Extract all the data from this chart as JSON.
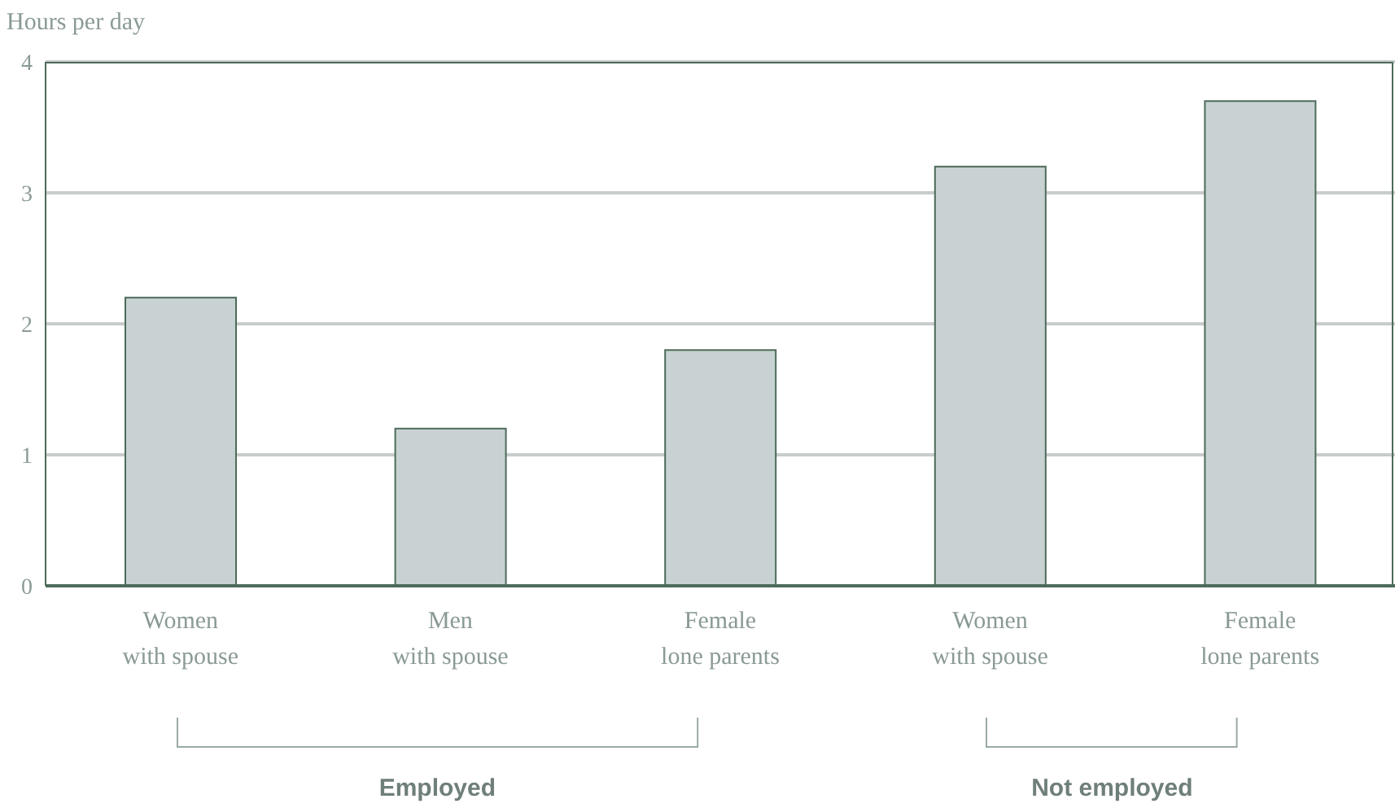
{
  "chart_data": {
    "type": "bar",
    "ylabel": "Hours per day",
    "categories": [
      "Women\nwith spouse",
      "Men\nwith spouse",
      "Female\nlone parents",
      "Women\nwith spouse",
      "Female\nlone parents"
    ],
    "values": [
      2.2,
      1.2,
      1.8,
      3.2,
      3.7
    ],
    "color": "#c8d2d2",
    "ylim": [
      0,
      4
    ],
    "yticks": [
      0,
      1,
      2,
      3,
      4
    ],
    "grid": "y",
    "annotations": [
      "Employed",
      "Not employed"
    ]
  }
}
